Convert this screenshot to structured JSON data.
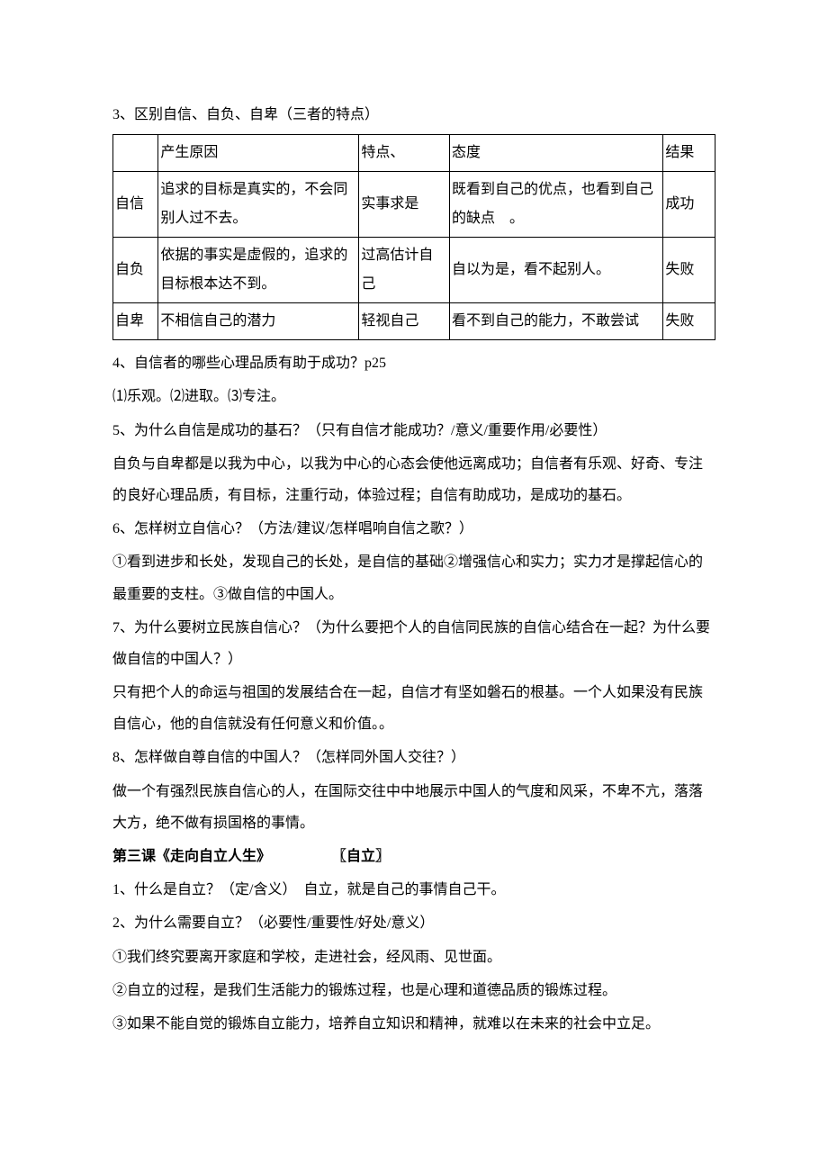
{
  "heading3": "3、区别自信、自负、自卑（三者的特点）",
  "table": {
    "headers": [
      "",
      "产生原因",
      "特点、",
      "态度",
      "结果"
    ],
    "rows": [
      [
        "自信",
        "追求的目标是真实的，不会同别人过不去。",
        "实事求是",
        "既看到自己的优点，也看到自己的缺点　。",
        "成功"
      ],
      [
        "自负",
        "依据的事实是虚假的，追求的目标根本达不到。",
        "过高估计自己",
        "自以为是，看不起别人。",
        "失败"
      ],
      [
        "自卑",
        "不相信自己的潜力",
        "轻视自己",
        "看不到自己的能力，不敢尝试",
        "失败"
      ]
    ]
  },
  "p4": "4、自信者的哪些心理品质有助于成功？p25",
  "p4a": "⑴乐观。⑵进取。⑶专注。",
  "p5": "5、为什么自信是成功的基石？（只有自信才能成功？/意义/重要作用/必要性）",
  "p5a": "自负与自卑都是以我为中心，以我为中心的心态会使他远离成功；自信者有乐观、好奇、专注的良好心理品质，有目标，注重行动，体验过程；自信有助成功，是成功的基石。",
  "p6": "6、怎样树立自信心？（方法/建议/怎样唱响自信之歌？）",
  "p6a": "①看到进步和长处，发现自己的长处，是自信的基础②增强信心和实力；实力才是撑起信心的最重要的支柱。③做自信的中国人。",
  "p7": "7、为什么要树立民族自信心？（为什么要把个人的自信同民族的自信心结合在一起？为什么要做自信的中国人？）",
  "p7a": "只有把个人的命运与祖国的发展结合在一起，自信才有坚如磐石的根基。一个人如果没有民族自信心，他的自信就没有任何意义和价值。。",
  "p8": "8、怎样做自尊自信的中国人？（怎样同外国人交往？）",
  "p8a": "做一个有强烈民族自信心的人，在国际交往中中地展示中国人的气度和风采，不卑不亢，落落大方，绝不做有损国格的事情。",
  "lesson3_title": "第三课《走向自立人生》",
  "lesson3_tag": "〖自立〗",
  "l3p1": "1、什么是自立？（定/含义）　自立，就是自己的事情自己干。",
  "l3p2": "2、为什么需要自立？（必要性/重要性/好处/意义）",
  "l3p2a": "①我们终究要离开家庭和学校，走进社会，经风雨、见世面。",
  "l3p2b": "②自立的过程，是我们生活能力的锻炼过程，也是心理和道德品质的锻炼过程。",
  "l3p2c": "③如果不能自觉的锻炼自立能力，培养自立知识和精神，就难以在未来的社会中立足。"
}
